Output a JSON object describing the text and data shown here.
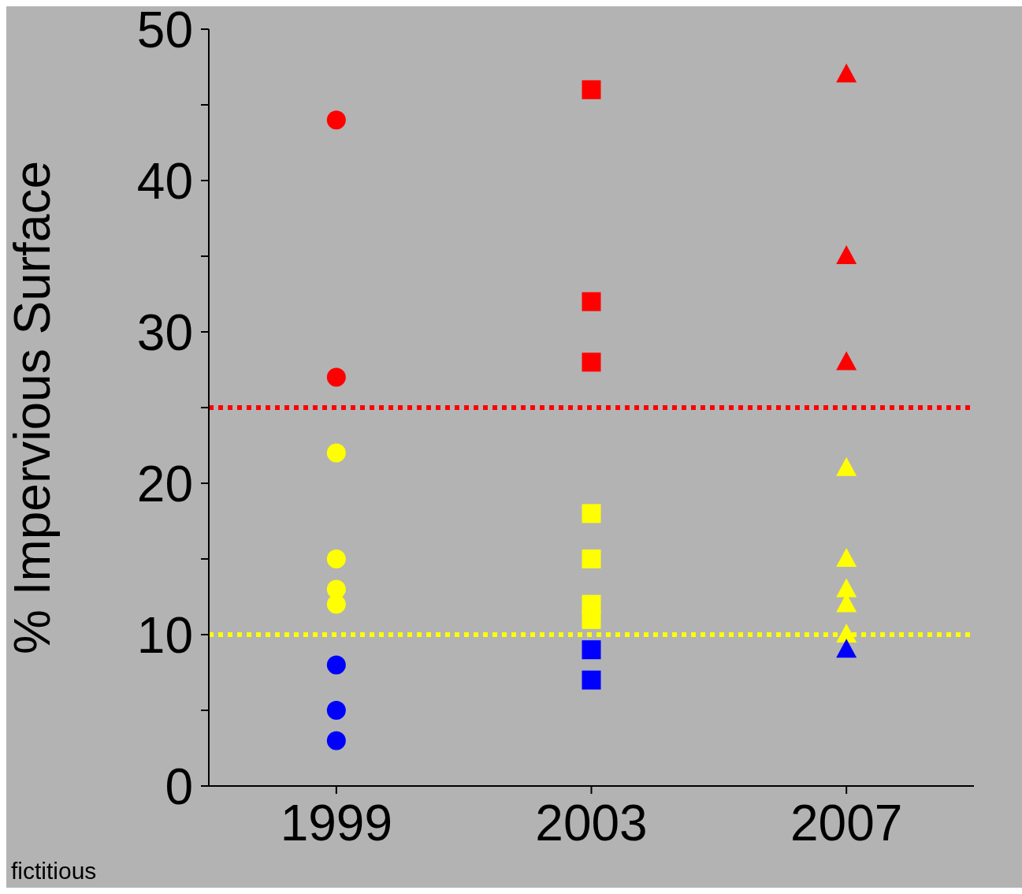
{
  "chart_data": {
    "type": "scatter",
    "ylabel": "% Impervious Surface",
    "series": [
      {
        "x": [
          1999,
          1999,
          1999,
          1999,
          1999,
          1999,
          1999,
          1999,
          1999
        ],
        "values": [
          44,
          27,
          22,
          15,
          13,
          12,
          8,
          5,
          3
        ],
        "colors": [
          "#ff0000",
          "#ff0000",
          "#ffff00",
          "#ffff00",
          "#ffff00",
          "#ffff00",
          "#0000ff",
          "#0000ff",
          "#0000ff"
        ],
        "marker": "circle"
      },
      {
        "x": [
          2003,
          2003,
          2003,
          2003,
          2003,
          2003,
          2003,
          2003,
          2003
        ],
        "values": [
          46,
          32,
          28,
          18,
          15,
          12,
          11,
          9,
          7
        ],
        "colors": [
          "#ff0000",
          "#ff0000",
          "#ff0000",
          "#ffff00",
          "#ffff00",
          "#ffff00",
          "#ffff00",
          "#0000ff",
          "#0000ff"
        ],
        "marker": "square"
      },
      {
        "x": [
          2007,
          2007,
          2007,
          2007,
          2007,
          2007,
          2007,
          2007,
          2007
        ],
        "values": [
          47,
          35,
          28,
          21,
          15,
          13,
          12,
          10,
          9
        ],
        "colors": [
          "#ff0000",
          "#ff0000",
          "#ff0000",
          "#ffff00",
          "#ffff00",
          "#ffff00",
          "#ffff00",
          "#ffff00",
          "#0000ff"
        ],
        "marker": "triangle"
      }
    ],
    "xlim": [
      1997,
      2009
    ],
    "xticks": [
      1999,
      2003,
      2007
    ],
    "ylim": [
      0,
      50
    ],
    "yticks": [
      0,
      {
        "value": 5,
        "label": null
      },
      10,
      {
        "value": 15,
        "label": null
      },
      20,
      {
        "value": 25,
        "label": null
      },
      30,
      {
        "value": 35,
        "label": null
      },
      40,
      {
        "value": 45,
        "label": null
      },
      50
    ],
    "ref_lines": [
      {
        "axis": "y",
        "value": 25,
        "color": "#ff0000",
        "line_style": "dotted"
      },
      {
        "axis": "y",
        "value": 10,
        "color": "#ffff00",
        "line_style": "dotted"
      }
    ],
    "annotations": [
      "fictitious"
    ]
  }
}
